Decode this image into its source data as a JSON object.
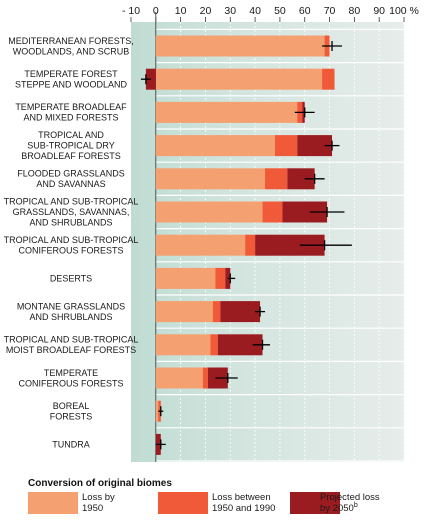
{
  "chart_data": {
    "type": "bar",
    "orientation": "horizontal",
    "stacked": true,
    "xlim": [
      -10,
      100
    ],
    "x_ticks": [
      "- 10",
      "0",
      "10",
      "20",
      "30",
      "40",
      "50",
      "60",
      "70",
      "80",
      "90",
      "100 %"
    ],
    "categories": [
      [
        "MEDITERRANEAN FORESTS,",
        "WOODLANDS, AND SCRUB"
      ],
      [
        "TEMPERATE FOREST",
        "STEPPE AND WOODLAND"
      ],
      [
        "TEMPERATE BROADLEAF",
        "AND MIXED FORESTS"
      ],
      [
        "TROPICAL AND",
        "SUB-TROPICAL DRY",
        "BROADLEAF FORESTS"
      ],
      [
        "FLOODED GRASSLANDS",
        "AND SAVANNAS"
      ],
      [
        "TROPICAL AND SUB-TROPICAL",
        "GRASSLANDS, SAVANNAS,",
        "AND SHRUBLANDS"
      ],
      [
        "TROPICAL AND SUB-TROPICAL",
        "CONIFEROUS FORESTS"
      ],
      [
        "DESERTS"
      ],
      [
        "MONTANE GRASSLANDS",
        "AND SHRUBLANDS"
      ],
      [
        "TROPICAL AND SUB-TROPICAL",
        "MOIST BROADLEAF FORESTS"
      ],
      [
        "TEMPERATE",
        "CONIFEROUS FORESTS"
      ],
      [
        "BOREAL",
        "FORESTS"
      ],
      [
        "TUNDRA"
      ]
    ],
    "series": [
      {
        "name": "Loss by 1950",
        "color": "#f4a070",
        "values": [
          68,
          67,
          57,
          48,
          44,
          43,
          36,
          24,
          23,
          22,
          19,
          1,
          0
        ]
      },
      {
        "name": "Loss between 1950 and 1990",
        "color": "#f05a38",
        "values": [
          2,
          5,
          2,
          9,
          9,
          8,
          4,
          4,
          3,
          3,
          2,
          1,
          0
        ]
      },
      {
        "name": "Projected loss by 2050",
        "color": "#9b1c20",
        "values": [
          0,
          -4,
          1,
          14,
          11,
          18,
          28,
          2,
          16,
          18,
          8,
          0,
          2
        ]
      }
    ],
    "error_bars": [
      {
        "center": 71,
        "low": 67,
        "high": 75
      },
      {
        "center": -4,
        "low": -6,
        "high": -2
      },
      {
        "center": 60,
        "low": 56,
        "high": 64
      },
      {
        "center": 71,
        "low": 68,
        "high": 74
      },
      {
        "center": 64,
        "low": 60,
        "high": 68
      },
      {
        "center": 69,
        "low": 62,
        "high": 76
      },
      {
        "center": 68,
        "low": 58,
        "high": 79
      },
      {
        "center": 30,
        "low": 29,
        "high": 32
      },
      {
        "center": 42,
        "low": 40,
        "high": 44
      },
      {
        "center": 43,
        "low": 39,
        "high": 46
      },
      {
        "center": 29,
        "low": 24,
        "high": 33
      },
      {
        "center": 2,
        "low": 1,
        "high": 3
      },
      {
        "center": 2,
        "low": 0,
        "high": 4
      }
    ],
    "grid": true,
    "legend": {
      "title": "Conversion of original biomes",
      "position": "bottom",
      "items": [
        {
          "label_lines": [
            "Loss by",
            "1950"
          ],
          "color": "#f4a070"
        },
        {
          "label_lines": [
            "Loss between",
            "1950 and 1990"
          ],
          "color": "#f05a38"
        },
        {
          "label_lines": [
            "Projected loss",
            "by 2050"
          ],
          "superscript": "b",
          "color": "#9b1c20"
        }
      ]
    }
  }
}
